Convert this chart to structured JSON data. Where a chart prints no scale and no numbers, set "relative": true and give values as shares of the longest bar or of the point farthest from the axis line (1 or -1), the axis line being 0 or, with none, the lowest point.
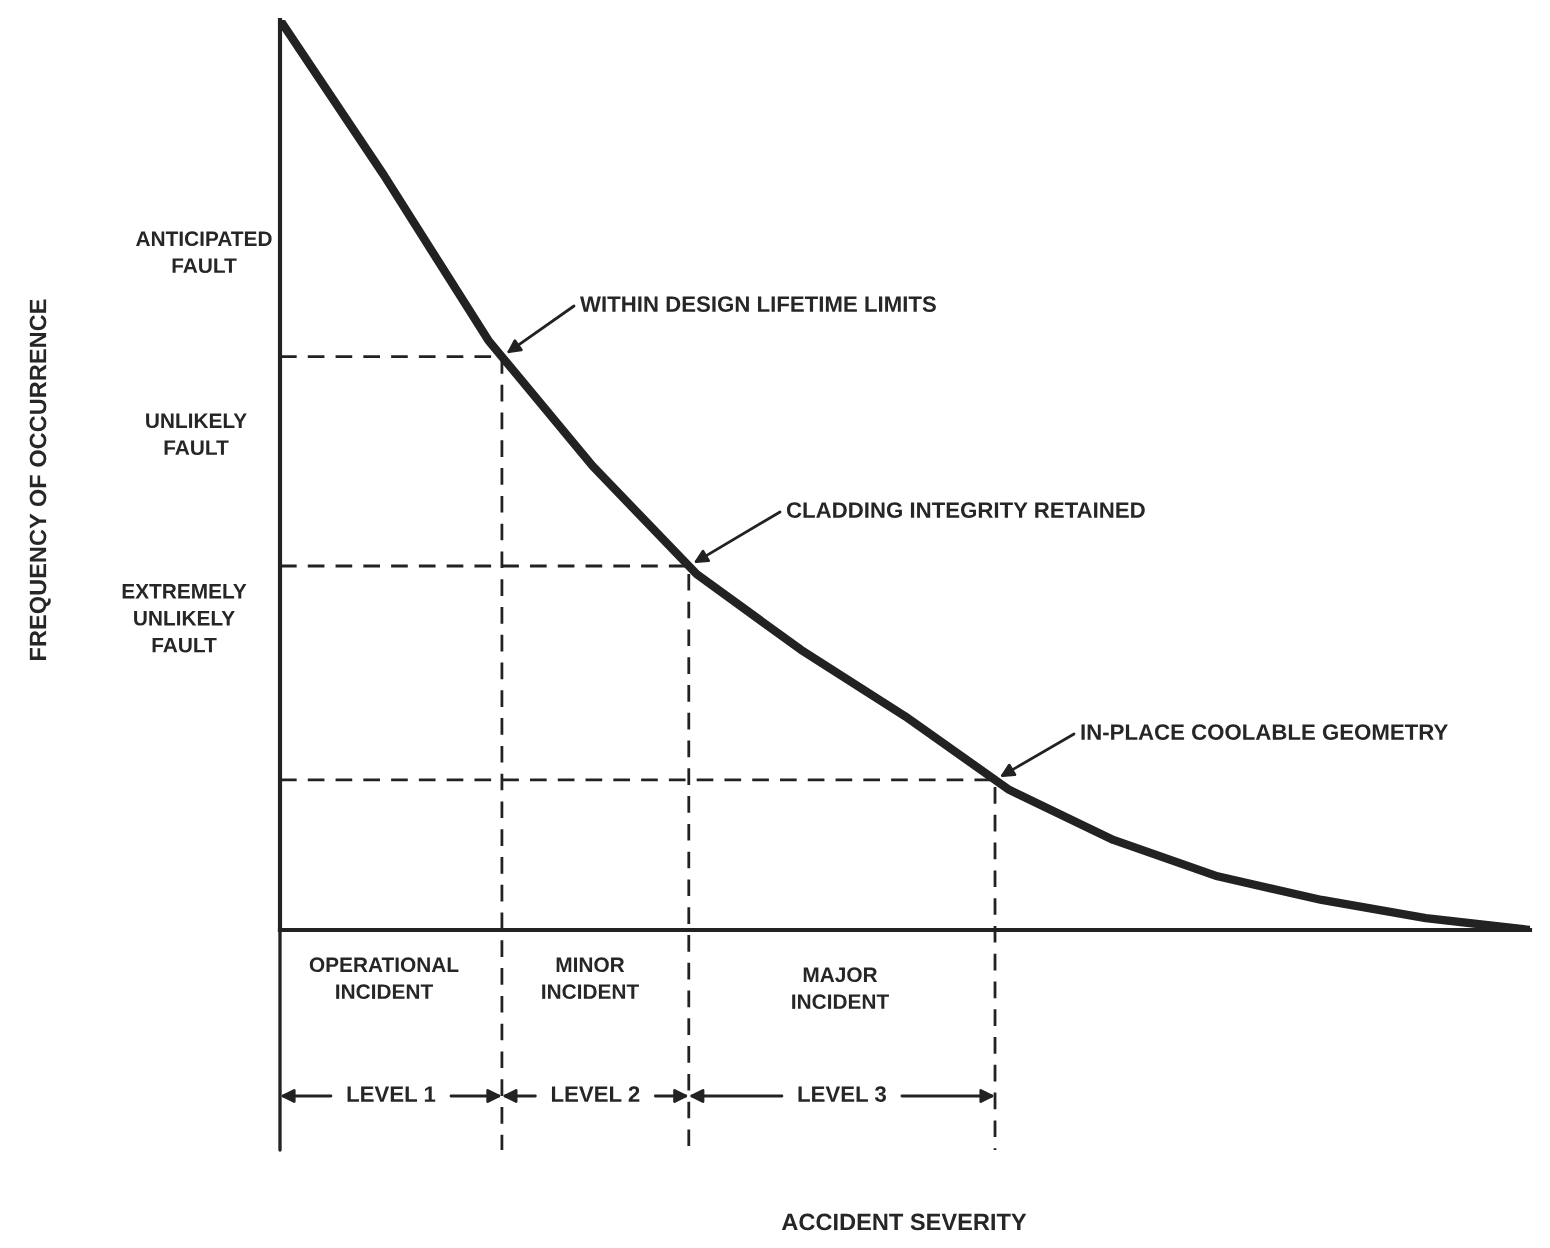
{
  "chart_data": {
    "type": "line",
    "relative": true,
    "categories": [
      null,
      null,
      null,
      null,
      null,
      null,
      null,
      null,
      null,
      null,
      null,
      null,
      null
    ],
    "series": [
      {
        "color": "#222222",
        "values": [
          1.0,
          0.829,
          0.648,
          0.51,
          0.391,
          0.308,
          0.235,
          0.154,
          0.099,
          0.059,
          0.033,
          0.013,
          0.0
        ]
      }
    ],
    "ref_lines": [
      {
        "axis": "y",
        "value": 0.63,
        "line_style": "dashed",
        "color": "#222222"
      },
      {
        "axis": "y",
        "value": 0.4,
        "line_style": "dashed",
        "color": "#222222"
      },
      {
        "axis": "y",
        "value": 0.165,
        "line_style": "dashed",
        "color": "#222222"
      }
    ],
    "annotations": [
      "WITHIN DESIGN LIFETIME LIMITS",
      "CLADDING INTEGRITY RETAINED",
      "IN-PLACE COOLABLE GEOMETRY",
      "ANTICIPATED\nFAULT",
      "UNLIKELY\nFAULT",
      "EXTREMELY\nUNLIKELY\nFAULT",
      "OPERATIONAL\nINCIDENT",
      "MINOR\nINCIDENT",
      "MAJOR\nINCIDENT",
      "LEVEL 1",
      "LEVEL 2",
      "LEVEL 3",
      "ACCIDENT SEVERITY",
      "FREQUENCY OF OCCURRENCE"
    ]
  }
}
